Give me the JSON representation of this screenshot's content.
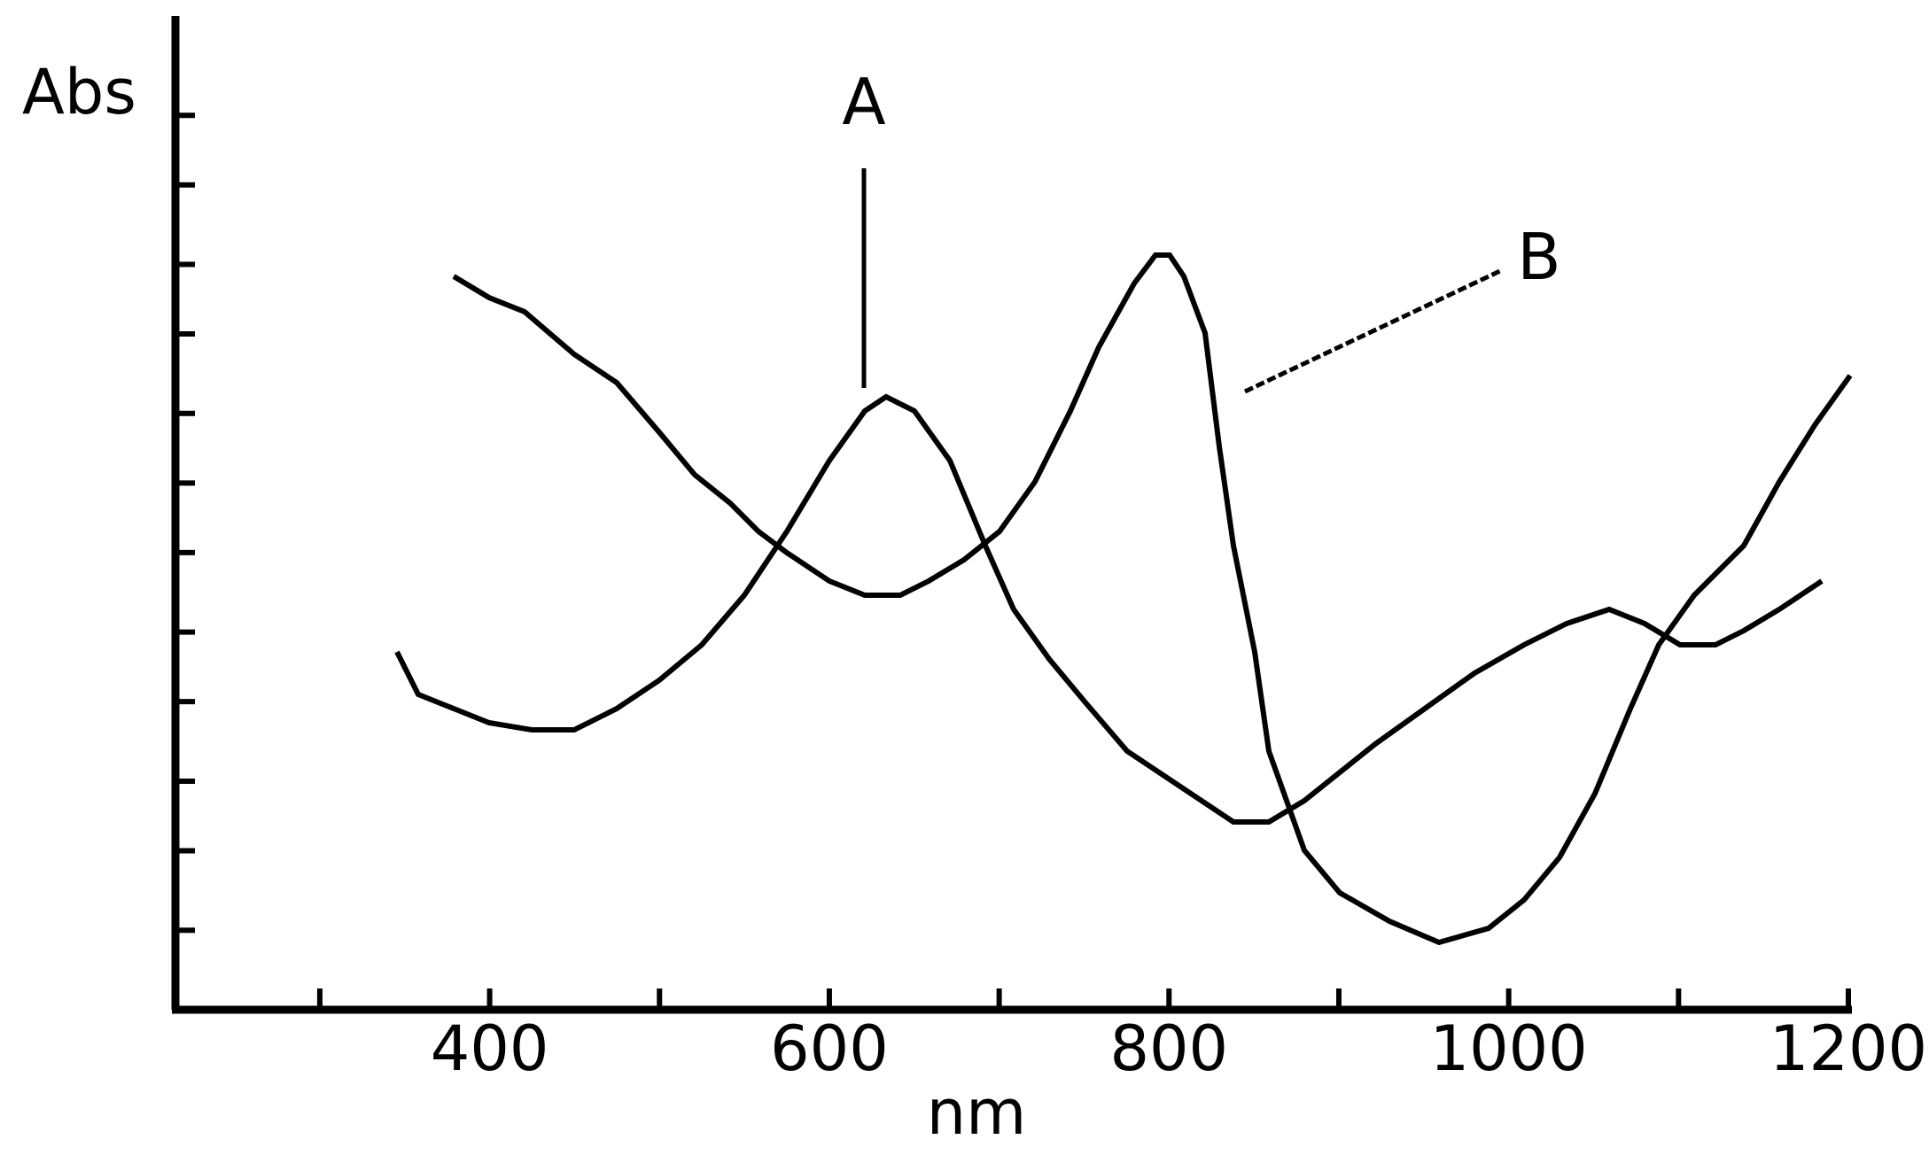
{
  "chart_data": {
    "type": "line",
    "ylabel": "Abs",
    "xlabel": "nm",
    "xlim": [
      215,
      1200
    ],
    "ylim": [
      0,
      1
    ],
    "x_ticks": [
      300,
      400,
      500,
      600,
      700,
      800,
      900,
      1000,
      1100,
      1200
    ],
    "x_tick_labels": [
      "400",
      "600",
      "800",
      "1000",
      "1200"
    ],
    "x_tick_label_values": [
      400,
      600,
      800,
      1000,
      1200
    ],
    "y_ticks": [
      0.08,
      0.16,
      0.23,
      0.31,
      0.38,
      0.46,
      0.53,
      0.6,
      0.68,
      0.75,
      0.83,
      0.9
    ],
    "grid": false,
    "legend": "none",
    "series": [
      {
        "label_text": "A",
        "points": [
          [
            345,
            0.36
          ],
          [
            360,
            0.32
          ],
          [
            380,
            0.3
          ],
          [
            400,
            0.29
          ],
          [
            425,
            0.28
          ],
          [
            450,
            0.285
          ],
          [
            475,
            0.3
          ],
          [
            500,
            0.33
          ],
          [
            525,
            0.37
          ],
          [
            550,
            0.42
          ],
          [
            575,
            0.48
          ],
          [
            600,
            0.55
          ],
          [
            620,
            0.6
          ],
          [
            635,
            0.62
          ],
          [
            650,
            0.6
          ],
          [
            670,
            0.55
          ],
          [
            690,
            0.47
          ],
          [
            710,
            0.4
          ],
          [
            730,
            0.35
          ],
          [
            750,
            0.31
          ],
          [
            775,
            0.26
          ],
          [
            800,
            0.23
          ],
          [
            825,
            0.2
          ],
          [
            840,
            0.19
          ],
          [
            860,
            0.19
          ],
          [
            880,
            0.21
          ],
          [
            900,
            0.24
          ],
          [
            920,
            0.27
          ],
          [
            950,
            0.3
          ],
          [
            980,
            0.34
          ],
          [
            1010,
            0.37
          ],
          [
            1035,
            0.39
          ],
          [
            1060,
            0.4
          ],
          [
            1080,
            0.39
          ],
          [
            1100,
            0.37
          ],
          [
            1120,
            0.37
          ],
          [
            1140,
            0.38
          ],
          [
            1160,
            0.4
          ],
          [
            1185,
            0.43
          ]
        ]
      },
      {
        "label_text": "B",
        "points": [
          [
            380,
            0.74
          ],
          [
            400,
            0.72
          ],
          [
            420,
            0.7
          ],
          [
            450,
            0.66
          ],
          [
            475,
            0.63
          ],
          [
            500,
            0.58
          ],
          [
            520,
            0.54
          ],
          [
            540,
            0.51
          ],
          [
            560,
            0.48
          ],
          [
            575,
            0.46
          ],
          [
            600,
            0.43
          ],
          [
            620,
            0.42
          ],
          [
            640,
            0.42
          ],
          [
            660,
            0.43
          ],
          [
            680,
            0.45
          ],
          [
            700,
            0.48
          ],
          [
            720,
            0.53
          ],
          [
            740,
            0.6
          ],
          [
            760,
            0.67
          ],
          [
            780,
            0.73
          ],
          [
            790,
            0.76
          ],
          [
            800,
            0.76
          ],
          [
            810,
            0.74
          ],
          [
            820,
            0.68
          ],
          [
            830,
            0.57
          ],
          [
            840,
            0.47
          ],
          [
            850,
            0.36
          ],
          [
            860,
            0.26
          ],
          [
            880,
            0.16
          ],
          [
            900,
            0.12
          ],
          [
            930,
            0.09
          ],
          [
            960,
            0.07
          ],
          [
            990,
            0.08
          ],
          [
            1010,
            0.11
          ],
          [
            1030,
            0.15
          ],
          [
            1050,
            0.22
          ],
          [
            1070,
            0.3
          ],
          [
            1090,
            0.37
          ],
          [
            1110,
            0.42
          ],
          [
            1140,
            0.47
          ],
          [
            1160,
            0.53
          ],
          [
            1180,
            0.59
          ],
          [
            1200,
            0.64
          ]
        ]
      }
    ]
  }
}
